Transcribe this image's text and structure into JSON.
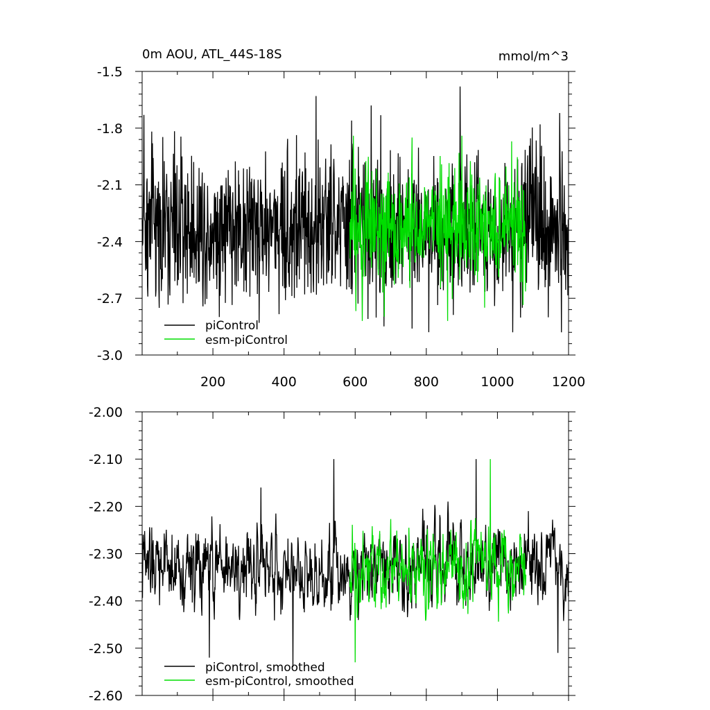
{
  "chart_data": [
    {
      "type": "line",
      "title": "0m AOU, ATL_44S-18S",
      "units": "mmol/m^3",
      "xlabel": "",
      "ylabel": "",
      "xlim": [
        1,
        1200
      ],
      "ylim": [
        -3.0,
        -1.5
      ],
      "xticks": [
        200,
        400,
        600,
        800,
        1000,
        1200
      ],
      "xtick_labels": [
        "200",
        "400",
        "600",
        "800",
        "1000",
        "1200"
      ],
      "yticks": [
        -3.0,
        -2.7,
        -2.4,
        -2.1,
        -1.8,
        -1.5
      ],
      "ytick_labels": [
        "-3.0",
        "-2.7",
        "-2.4",
        "-2.1",
        "-1.8",
        "-1.5"
      ],
      "grid": false,
      "legend_position": "bottom-left",
      "series": [
        {
          "name": "piControl",
          "color": "#000000",
          "x_range": [
            1,
            1200
          ],
          "mean": -2.32,
          "min": -2.88,
          "max": -1.58,
          "highlights": [
            [
              6,
              -1.73
            ],
            [
              30,
              -1.88
            ],
            [
              330,
              -2.83
            ],
            [
              490,
              -1.63
            ],
            [
              590,
              -1.76
            ],
            [
              645,
              -1.68
            ],
            [
              760,
              -2.86
            ],
            [
              895,
              -1.58
            ],
            [
              1070,
              -2.75
            ],
            [
              1120,
              -1.78
            ],
            [
              1175,
              -1.72
            ],
            [
              1180,
              -2.88
            ]
          ]
        },
        {
          "name": "esm-piControl",
          "color": "#00dd00",
          "x_range": [
            585,
            1080
          ],
          "mean": -2.33,
          "min": -2.82,
          "max": -1.84,
          "highlights": [
            [
              595,
              -1.84
            ],
            [
              620,
              -2.82
            ],
            [
              760,
              -1.85
            ],
            [
              860,
              -2.82
            ],
            [
              900,
              -1.84
            ],
            [
              1040,
              -1.87
            ]
          ]
        }
      ]
    },
    {
      "type": "line",
      "title": "",
      "xlabel": "",
      "ylabel": "",
      "xlim": [
        1,
        1200
      ],
      "ylim": [
        -2.6,
        -2.0
      ],
      "xticks": [
        200,
        400,
        600,
        800,
        1000,
        1200
      ],
      "yticks": [
        -2.6,
        -2.5,
        -2.4,
        -2.3,
        -2.2,
        -2.1,
        -2.0
      ],
      "ytick_labels": [
        "-2.60",
        "-2.50",
        "-2.40",
        "-2.30",
        "-2.20",
        "-2.10",
        "-2.00"
      ],
      "grid": false,
      "legend_position": "bottom-left",
      "series": [
        {
          "name": "piControl, smoothed",
          "color": "#000000",
          "x_range": [
            1,
            1200
          ],
          "mean": -2.33,
          "min": -2.55,
          "max": -2.1,
          "highlights": [
            [
              190,
              -2.52
            ],
            [
              335,
              -2.16
            ],
            [
              425,
              -2.54
            ],
            [
              540,
              -2.1
            ],
            [
              940,
              -2.1
            ],
            [
              1170,
              -2.51
            ]
          ]
        },
        {
          "name": "esm-piControl, smoothed",
          "color": "#00dd00",
          "x_range": [
            585,
            1080
          ],
          "mean": -2.33,
          "min": -2.53,
          "max": -2.1,
          "highlights": [
            [
              600,
              -2.53
            ],
            [
              980,
              -2.1
            ]
          ]
        }
      ]
    }
  ]
}
